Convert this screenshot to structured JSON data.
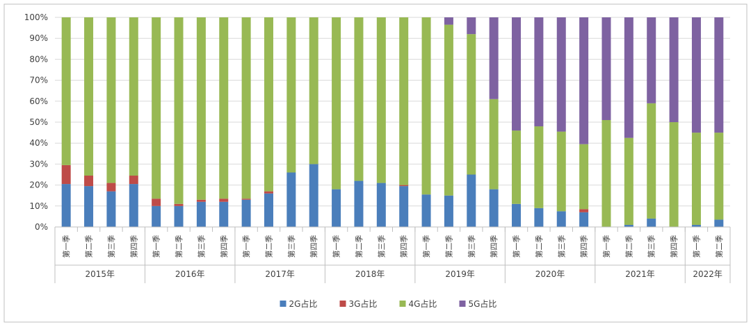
{
  "chart_data": {
    "type": "bar",
    "stacked": true,
    "ylim": [
      0,
      100
    ],
    "yticks": [
      "0%",
      "10%",
      "20%",
      "30%",
      "40%",
      "50%",
      "60%",
      "70%",
      "80%",
      "90%",
      "100%"
    ],
    "grid": true,
    "legend_position": "bottom",
    "years": [
      {
        "label": "2015年",
        "quarters": 4
      },
      {
        "label": "2016年",
        "quarters": 4
      },
      {
        "label": "2017年",
        "quarters": 4
      },
      {
        "label": "2018年",
        "quarters": 4
      },
      {
        "label": "2019年",
        "quarters": 4
      },
      {
        "label": "2020年",
        "quarters": 4
      },
      {
        "label": "2021年",
        "quarters": 4
      },
      {
        "label": "2022年",
        "quarters": 2
      }
    ],
    "categories": [
      "第一季",
      "第二季",
      "第三季",
      "第四季",
      "第一季",
      "第二季",
      "第三季",
      "第四季",
      "第一季",
      "第二季",
      "第三季",
      "第四季",
      "第一季",
      "第二季",
      "第三季",
      "第四季",
      "第一季",
      "第二季",
      "第三季",
      "第四季",
      "第一季",
      "第二季",
      "第三季",
      "第四季",
      "第一季",
      "第二季",
      "第三季",
      "第四季",
      "第一季",
      "第二季"
    ],
    "series": [
      {
        "name": "2G占比",
        "color": "#4a7ebb",
        "values": [
          20.5,
          19.5,
          17,
          20.5,
          10,
          10,
          12,
          12,
          13,
          16,
          26,
          30,
          18,
          22,
          21,
          19.5,
          15.5,
          15,
          25,
          18,
          11,
          9,
          7.5,
          7,
          0,
          1,
          4,
          0,
          1,
          3.5
        ]
      },
      {
        "name": "3G占比",
        "color": "#be4b48",
        "values": [
          9,
          5,
          4,
          4,
          3.5,
          1,
          1,
          1.5,
          0.5,
          1,
          0,
          0,
          0,
          0,
          0,
          0.5,
          0,
          0,
          0,
          0,
          0,
          0,
          0,
          1.5,
          0,
          0,
          0,
          0,
          0,
          0
        ]
      },
      {
        "name": "4G占比",
        "color": "#98b954",
        "values": [
          70.5,
          75.5,
          79,
          75.5,
          86.5,
          89,
          87,
          86.5,
          86.5,
          83,
          74,
          70,
          82,
          78,
          79,
          80,
          84.5,
          81.5,
          67,
          43,
          35,
          39,
          38,
          31,
          51,
          41.5,
          55,
          50,
          44,
          41.5
        ]
      },
      {
        "name": "5G占比",
        "color": "#7e62a1",
        "values": [
          0,
          0,
          0,
          0,
          0,
          0,
          0,
          0,
          0,
          0,
          0,
          0,
          0,
          0,
          0,
          0,
          0,
          3.5,
          8,
          39,
          54,
          52,
          54.5,
          60.5,
          49,
          57.5,
          41,
          50,
          55,
          55
        ]
      }
    ]
  }
}
